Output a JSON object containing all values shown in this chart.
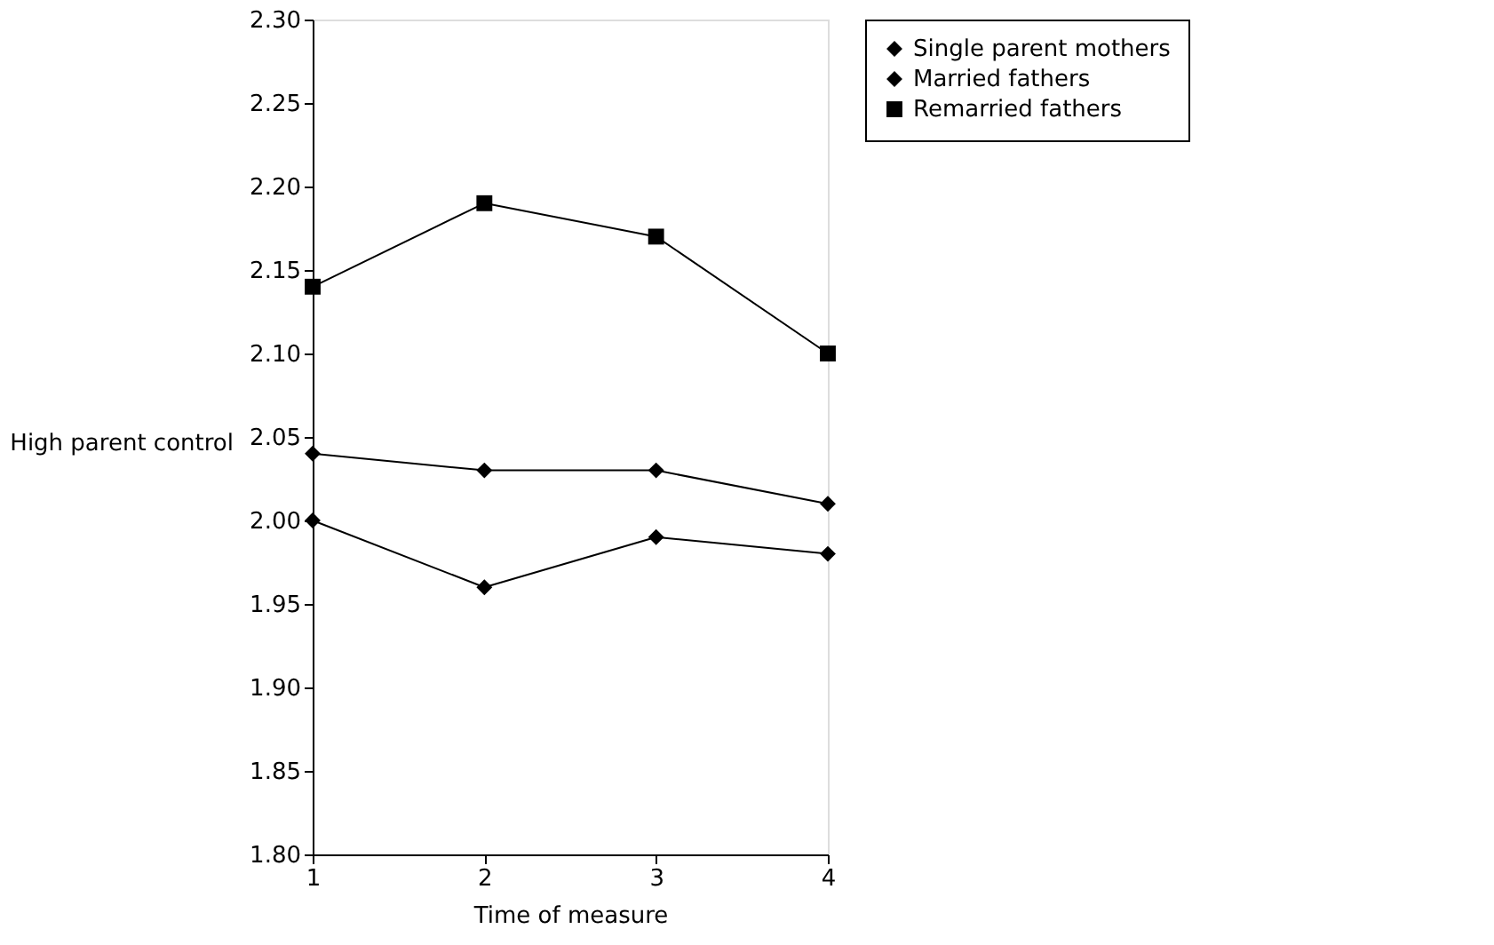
{
  "chart_data": {
    "type": "line",
    "xlabel": "Time of measure",
    "ylabel": "High parent control",
    "categories": [
      "1",
      "2",
      "3",
      "4"
    ],
    "series": [
      {
        "name": "Single parent mothers",
        "color": "#000000",
        "marker": "diamond",
        "values": [
          2.0,
          1.96,
          1.99,
          1.98
        ]
      },
      {
        "name": "Married fathers",
        "color": "#000000",
        "marker": "diamond",
        "values": [
          2.04,
          2.03,
          2.03,
          2.01
        ]
      },
      {
        "name": "Remarried fathers",
        "color": "#000000",
        "marker": "square",
        "values": [
          2.14,
          2.19,
          2.17,
          2.1
        ]
      }
    ],
    "ylim": [
      1.8,
      2.3
    ],
    "yticks": [
      {
        "value": 1.8,
        "label": "1.80"
      },
      {
        "value": 1.85,
        "label": "1.85"
      },
      {
        "value": 1.9,
        "label": "1.90"
      },
      {
        "value": 1.95,
        "label": "1.95"
      },
      {
        "value": 2.0,
        "label": "2.00"
      },
      {
        "value": 2.05,
        "label": "2.05"
      },
      {
        "value": 2.1,
        "label": "2.10"
      },
      {
        "value": 2.15,
        "label": "2.15"
      },
      {
        "value": 2.2,
        "label": "2.20"
      },
      {
        "value": 2.25,
        "label": "2.25"
      },
      {
        "value": 2.3,
        "label": "2.30"
      }
    ],
    "grid": false,
    "legend": "right",
    "line_style": "solid"
  }
}
